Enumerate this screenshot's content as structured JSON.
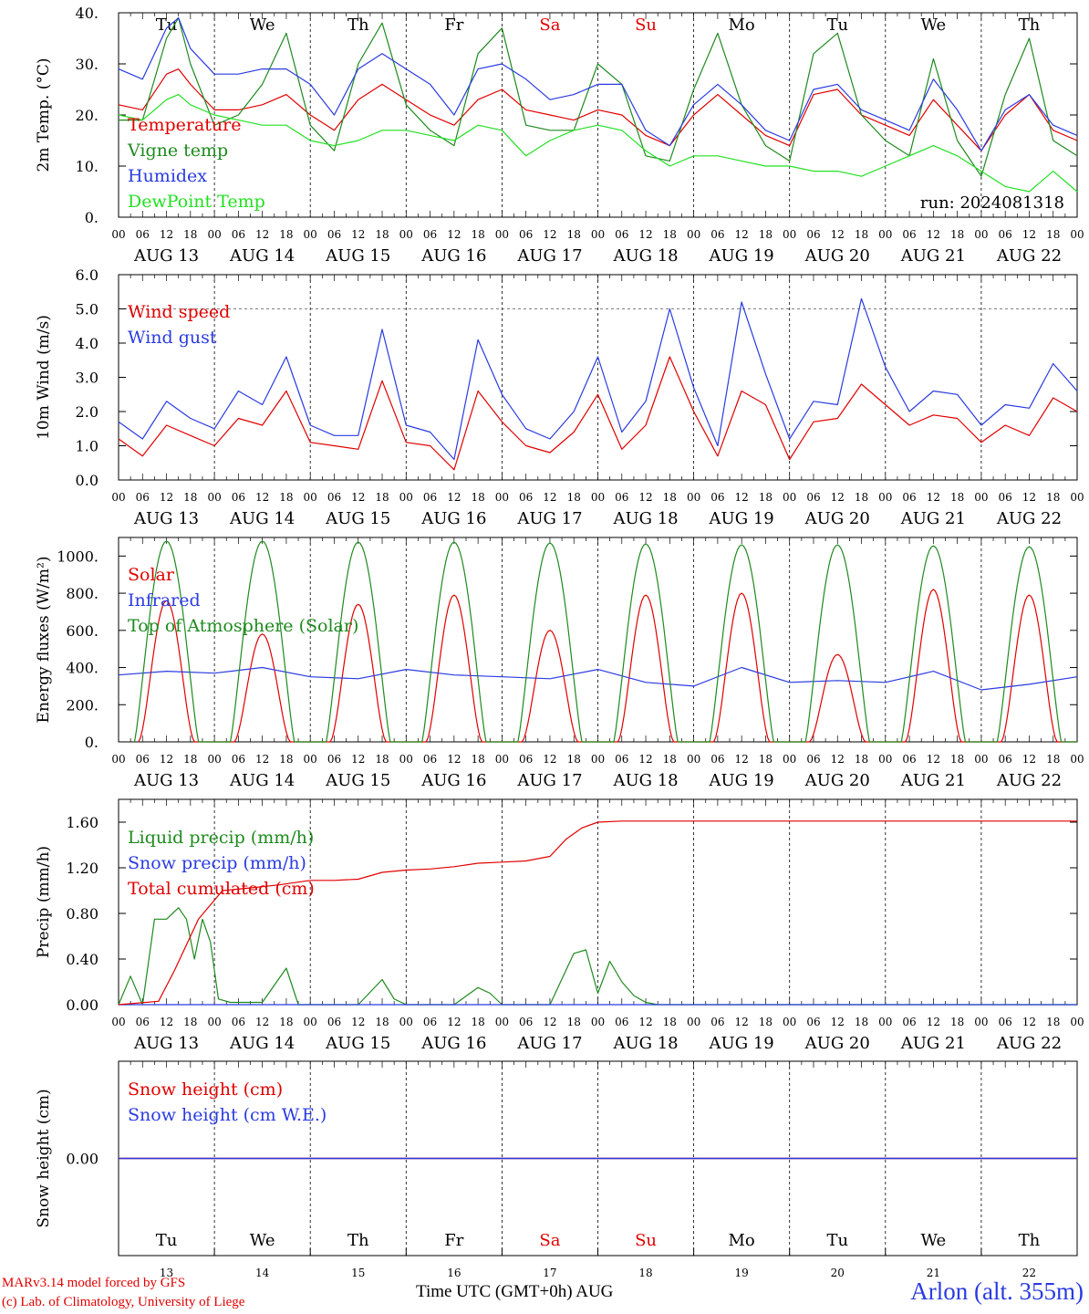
{
  "run_label": "run: 2024081318",
  "days": {
    "names": [
      "Tu",
      "We",
      "Th",
      "Fr",
      "Sa",
      "Su",
      "Mo",
      "Tu",
      "We",
      "Th"
    ],
    "dates": [
      "AUG 13",
      "AUG 14",
      "AUG 15",
      "AUG 16",
      "AUG 17",
      "AUG 18",
      "AUG 19",
      "AUG 20",
      "AUG 21",
      "AUG 22"
    ],
    "numbers": [
      "13",
      "14",
      "15",
      "16",
      "17",
      "18",
      "19",
      "20",
      "21",
      "22"
    ],
    "weekend_color": "#e00000",
    "hour_ticks": [
      "00",
      "06",
      "12",
      "18"
    ]
  },
  "footer": {
    "credit_line1": "MARv3.14 model forced by GFS",
    "credit_line2": "(c) Lab. of Climatology, University of Liege",
    "x_title": "Time UTC (GMT+0h) AUG",
    "station": "Arlon (alt. 355m)"
  },
  "chart_data": [
    {
      "type": "line",
      "ylabel": "2m Temp. (°C)",
      "ylim": [
        0,
        40
      ],
      "yticks": [
        "0.",
        "10.",
        "20.",
        "30.",
        "40."
      ],
      "x_unit": "hours since 2024-08-13 00 UTC",
      "series": [
        {
          "name": "Temperature",
          "color": "#e00000",
          "x": [
            0,
            6,
            12,
            15,
            18,
            24,
            30,
            36,
            42,
            48,
            54,
            60,
            66,
            72,
            78,
            84,
            90,
            96,
            102,
            108,
            114,
            120,
            126,
            132,
            138,
            144,
            150,
            156,
            162,
            168,
            174,
            180,
            186,
            192,
            198,
            204,
            210,
            216,
            222,
            228,
            234,
            240
          ],
          "y": [
            22,
            21,
            28,
            29,
            26,
            21,
            21,
            22,
            24,
            20,
            17,
            23,
            26,
            23,
            20,
            18,
            23,
            25,
            21,
            20,
            19,
            21,
            20,
            16,
            14,
            20,
            24,
            20,
            16,
            14,
            24,
            25,
            20,
            18,
            16,
            23,
            18,
            13,
            20,
            24,
            17,
            15
          ]
        },
        {
          "name": "Vigne temp",
          "color": "#1e8a1e",
          "x": [
            0,
            6,
            12,
            15,
            18,
            24,
            30,
            36,
            42,
            48,
            54,
            60,
            66,
            72,
            78,
            84,
            90,
            96,
            102,
            108,
            114,
            120,
            126,
            132,
            138,
            144,
            150,
            156,
            162,
            168,
            174,
            180,
            186,
            192,
            198,
            204,
            210,
            216,
            222,
            228,
            234,
            240
          ],
          "y": [
            19,
            19,
            35,
            39,
            30,
            18,
            20,
            26,
            36,
            18,
            13,
            30,
            38,
            22,
            17,
            14,
            32,
            37,
            18,
            17,
            17,
            30,
            26,
            12,
            11,
            25,
            36,
            22,
            14,
            11,
            32,
            36,
            20,
            15,
            12,
            31,
            15,
            8,
            24,
            35,
            15,
            12
          ]
        },
        {
          "name": "Humidex",
          "color": "#2a3be0",
          "x": [
            0,
            6,
            12,
            15,
            18,
            24,
            30,
            36,
            42,
            48,
            54,
            60,
            66,
            72,
            78,
            84,
            90,
            96,
            102,
            108,
            114,
            120,
            126,
            132,
            138,
            144,
            150,
            156,
            162,
            168,
            174,
            180,
            186,
            192,
            198,
            204,
            210,
            216,
            222,
            228,
            234,
            240
          ],
          "y": [
            29,
            27,
            37,
            39,
            33,
            28,
            28,
            29,
            29,
            26,
            20,
            29,
            32,
            29,
            26,
            20,
            29,
            30,
            27,
            23,
            24,
            26,
            26,
            17,
            14,
            22,
            26,
            22,
            17,
            15,
            25,
            26,
            21,
            19,
            17,
            27,
            21,
            13,
            21,
            24,
            18,
            16
          ]
        },
        {
          "name": "DewPoint Temp",
          "color": "#22e022",
          "x": [
            0,
            6,
            12,
            15,
            18,
            24,
            30,
            36,
            42,
            48,
            54,
            60,
            66,
            72,
            78,
            84,
            90,
            96,
            102,
            108,
            114,
            120,
            126,
            132,
            138,
            144,
            150,
            156,
            162,
            168,
            174,
            180,
            186,
            192,
            198,
            204,
            210,
            216,
            222,
            228,
            234,
            240
          ],
          "y": [
            20,
            19,
            23,
            24,
            22,
            20,
            19,
            18,
            18,
            15,
            14,
            15,
            17,
            17,
            16,
            15,
            18,
            17,
            12,
            15,
            17,
            18,
            17,
            13,
            10,
            12,
            12,
            11,
            10,
            10,
            9,
            9,
            8,
            10,
            12,
            14,
            12,
            9,
            6,
            5,
            9,
            5
          ]
        }
      ]
    },
    {
      "type": "line",
      "ylabel": "10m Wind (m/s)",
      "ylim": [
        0,
        6
      ],
      "yticks": [
        "0.0",
        "1.0",
        "2.0",
        "3.0",
        "4.0",
        "5.0",
        "6.0"
      ],
      "series": [
        {
          "name": "Wind speed",
          "color": "#e00000",
          "x": [
            0,
            6,
            12,
            18,
            24,
            30,
            36,
            42,
            48,
            54,
            60,
            66,
            72,
            78,
            84,
            90,
            96,
            102,
            108,
            114,
            120,
            126,
            132,
            138,
            144,
            150,
            156,
            162,
            168,
            174,
            180,
            186,
            192,
            198,
            204,
            210,
            216,
            222,
            228,
            234,
            240
          ],
          "y": [
            1.2,
            0.7,
            1.6,
            1.3,
            1.0,
            1.8,
            1.6,
            2.6,
            1.1,
            1.0,
            0.9,
            2.9,
            1.1,
            1.0,
            0.3,
            2.6,
            1.7,
            1.0,
            0.8,
            1.4,
            2.5,
            0.9,
            1.6,
            3.6,
            2.0,
            0.7,
            2.6,
            2.2,
            0.6,
            1.7,
            1.8,
            2.8,
            2.2,
            1.6,
            1.9,
            1.8,
            1.1,
            1.6,
            1.3,
            2.4,
            2.0
          ]
        },
        {
          "name": "Wind gust",
          "color": "#2a3be0",
          "x": [
            0,
            6,
            12,
            18,
            24,
            30,
            36,
            42,
            48,
            54,
            60,
            66,
            72,
            78,
            84,
            90,
            96,
            102,
            108,
            114,
            120,
            126,
            132,
            138,
            144,
            150,
            156,
            162,
            168,
            174,
            180,
            186,
            192,
            198,
            204,
            210,
            216,
            222,
            228,
            234,
            240
          ],
          "y": [
            1.7,
            1.2,
            2.3,
            1.8,
            1.5,
            2.6,
            2.2,
            3.6,
            1.6,
            1.3,
            1.3,
            4.4,
            1.6,
            1.4,
            0.6,
            4.1,
            2.5,
            1.5,
            1.2,
            2.0,
            3.6,
            1.4,
            2.3,
            5.0,
            2.7,
            1.0,
            5.2,
            3.1,
            1.2,
            2.3,
            2.2,
            5.3,
            3.3,
            2.0,
            2.6,
            2.5,
            1.6,
            2.2,
            2.1,
            3.4,
            2.6
          ]
        }
      ]
    },
    {
      "type": "line",
      "ylabel": "Energy fluxes (W/m²)",
      "ylim": [
        0,
        1100
      ],
      "yticks": [
        "0.",
        "200.",
        "400.",
        "600.",
        "800.",
        "1000."
      ],
      "series": [
        {
          "name": "Solar",
          "color": "#e00000",
          "peaks": [
            760,
            580,
            740,
            790,
            600,
            790,
            800,
            470,
            820,
            790
          ]
        },
        {
          "name": "Infrared",
          "color": "#2a3be0",
          "x": [
            0,
            12,
            24,
            36,
            48,
            60,
            72,
            84,
            96,
            108,
            120,
            132,
            144,
            156,
            168,
            180,
            192,
            204,
            216,
            228,
            240
          ],
          "y": [
            360,
            380,
            370,
            400,
            350,
            340,
            390,
            360,
            350,
            340,
            390,
            320,
            300,
            400,
            320,
            330,
            320,
            380,
            280,
            310,
            350
          ]
        },
        {
          "name": "Top of Atmosphere (Solar)",
          "color": "#1e8a1e",
          "peaks": [
            1080,
            1080,
            1075,
            1075,
            1070,
            1065,
            1060,
            1060,
            1055,
            1050
          ]
        }
      ]
    },
    {
      "type": "line",
      "ylabel": "Precip (mm/h)",
      "ylim": [
        0,
        1.8
      ],
      "yticks": [
        "0.00",
        "0.40",
        "0.80",
        "1.20",
        "1.60"
      ],
      "series": [
        {
          "name": "Liquid precip (mm/h)",
          "color": "#1e8a1e",
          "x": [
            0,
            3,
            6,
            9,
            12,
            15,
            17,
            19,
            21,
            23,
            25,
            28,
            36,
            42,
            45,
            48,
            60,
            66,
            69,
            72,
            84,
            90,
            93,
            96,
            108,
            114,
            117,
            120,
            123,
            126,
            129,
            132,
            135,
            138,
            144,
            240
          ],
          "y": [
            0,
            0.25,
            0,
            0.75,
            0.75,
            0.85,
            0.75,
            0.4,
            0.75,
            0.55,
            0.05,
            0.02,
            0.02,
            0.32,
            0,
            0,
            0,
            0.22,
            0.05,
            0,
            0,
            0.15,
            0.1,
            0,
            0,
            0.45,
            0.48,
            0.1,
            0.38,
            0.2,
            0.08,
            0.02,
            0,
            0,
            0,
            0
          ]
        },
        {
          "name": "Snow precip (mm/h)",
          "color": "#2a3be0",
          "x": [
            0,
            240
          ],
          "y": [
            0,
            0
          ]
        },
        {
          "name": "Total cumulated (cm)",
          "color": "#e00000",
          "x": [
            0,
            10,
            14,
            20,
            26,
            32,
            40,
            48,
            54,
            60,
            66,
            72,
            78,
            84,
            90,
            96,
            102,
            108,
            112,
            116,
            120,
            126,
            132,
            140,
            150,
            180,
            240
          ],
          "y": [
            0,
            0.03,
            0.3,
            0.75,
            1.0,
            1.02,
            1.05,
            1.09,
            1.09,
            1.1,
            1.16,
            1.18,
            1.19,
            1.21,
            1.24,
            1.25,
            1.26,
            1.3,
            1.45,
            1.55,
            1.6,
            1.61,
            1.61,
            1.61,
            1.61,
            1.61,
            1.61
          ]
        }
      ]
    },
    {
      "type": "line",
      "ylabel": "Snow height (cm)",
      "ylim": [
        -1,
        1
      ],
      "yticks": [
        "0.00"
      ],
      "series": [
        {
          "name": "Snow height (cm)",
          "color": "#e00000",
          "x": [
            0,
            240
          ],
          "y": [
            0,
            0
          ]
        },
        {
          "name": "Snow height (cm W.E.)",
          "color": "#2a3be0",
          "x": [
            0,
            240
          ],
          "y": [
            0,
            0
          ]
        }
      ]
    }
  ]
}
